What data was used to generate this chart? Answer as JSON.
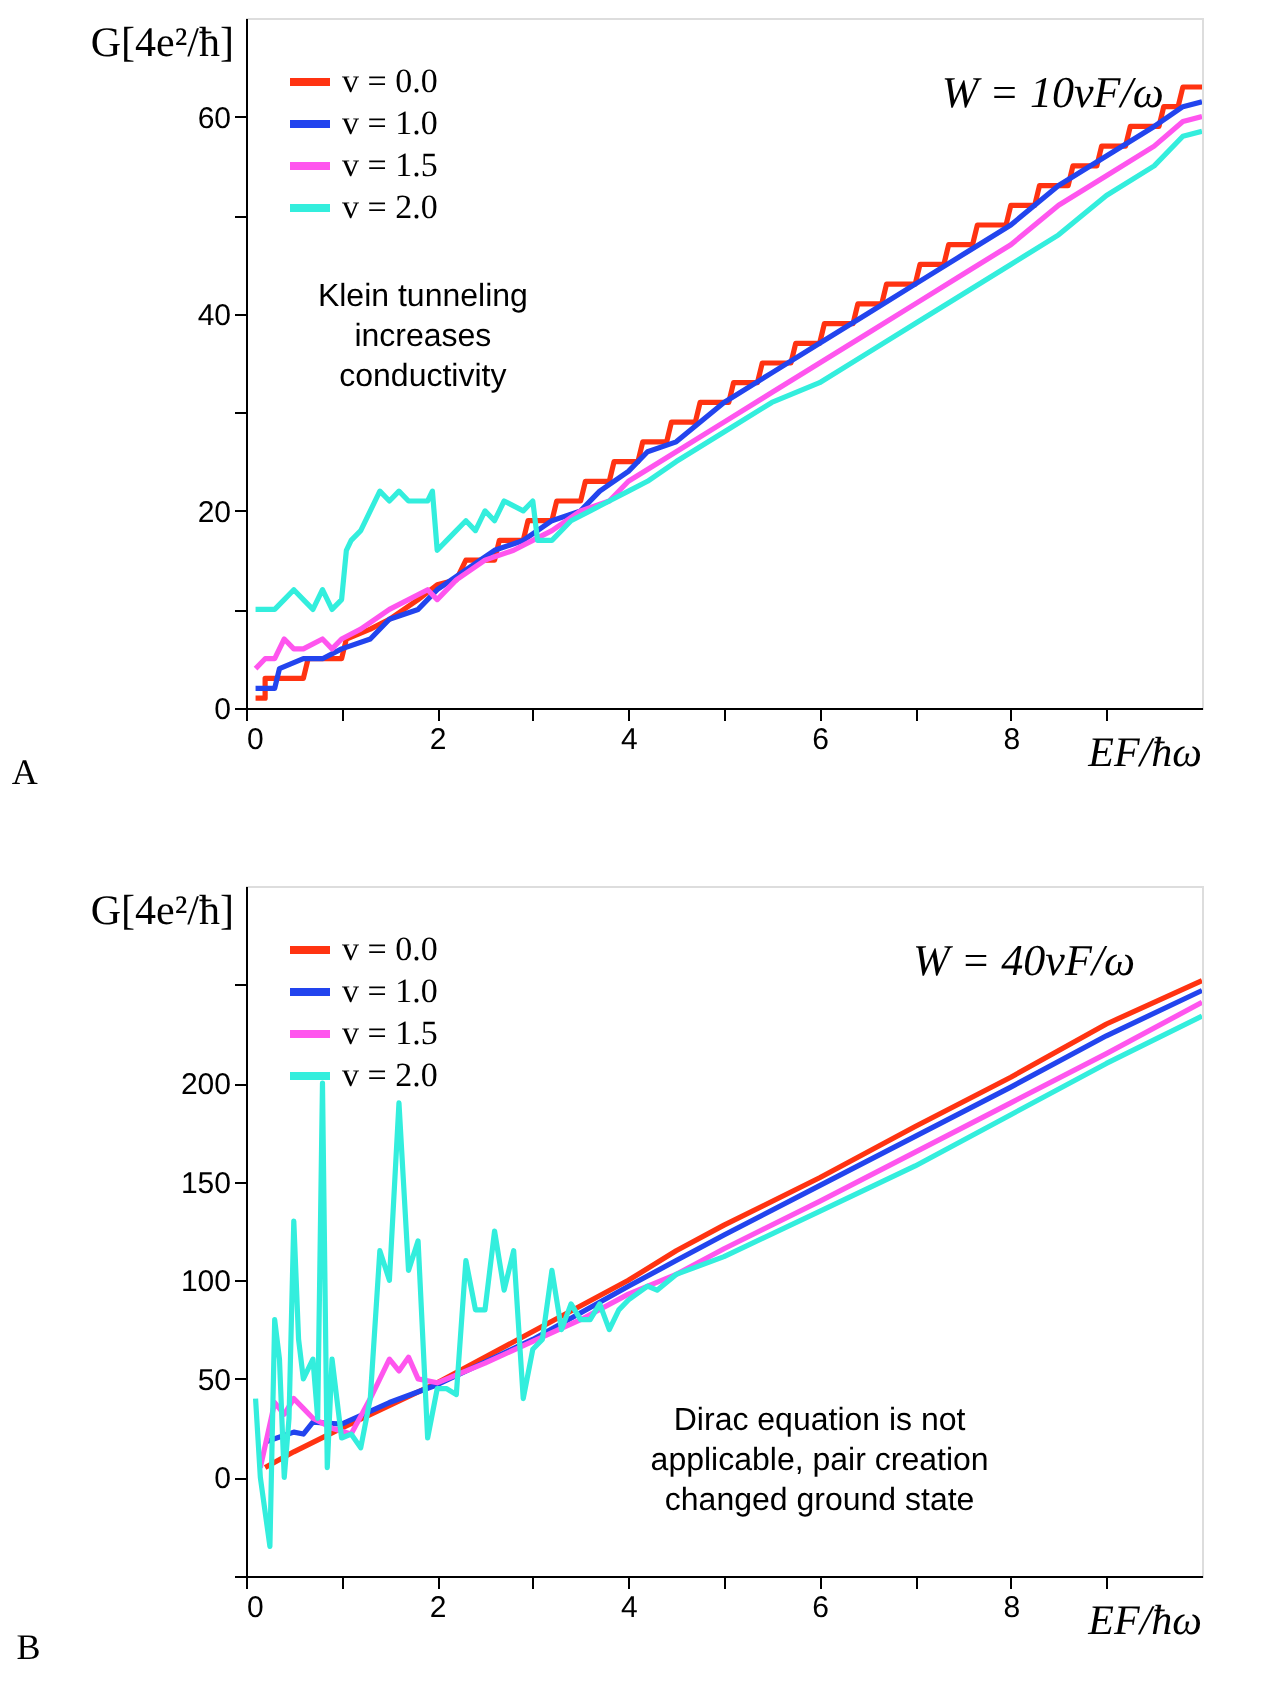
{
  "chart_data": [
    {
      "type": "line",
      "xlabel": "EF/ħω",
      "ylabel": "G[4e²/ħ]",
      "legend": "top left",
      "grid": false,
      "line_style": "solid",
      "marker": "none",
      "xlim": [
        0,
        10
      ],
      "ylim": [
        0,
        70
      ],
      "xticks": [
        0,
        {
          "value": 1,
          "label": null
        },
        2,
        {
          "value": 3,
          "label": null
        },
        4,
        {
          "value": 5,
          "label": null
        },
        6,
        {
          "value": 7,
          "label": null
        },
        8,
        {
          "value": 9,
          "label": null
        }
      ],
      "yticks": [
        0,
        {
          "value": 10,
          "label": null
        },
        20,
        {
          "value": 30,
          "label": null
        },
        40,
        {
          "value": 50,
          "label": null
        },
        60
      ],
      "annotations": [
        "W = 10vF/ω",
        "Klein tunneling increases conductivity",
        "A"
      ],
      "series": [
        {
          "name": "v = 0.0",
          "color": "#ff3311",
          "x": [
            0.1,
            0.2,
            0.2,
            0.6,
            0.65,
            1.0,
            1.05,
            1.3,
            1.5,
            1.8,
            2.0,
            2.2,
            2.3,
            2.6,
            2.65,
            2.9,
            2.95,
            3.2,
            3.25,
            3.5,
            3.55,
            3.8,
            3.85,
            4.1,
            4.15,
            4.4,
            4.45,
            4.7,
            4.75,
            5.05,
            5.1,
            5.35,
            5.4,
            5.7,
            5.75,
            6.0,
            6.05,
            6.35,
            6.4,
            6.65,
            6.7,
            7.0,
            7.05,
            7.3,
            7.35,
            7.6,
            7.65,
            7.95,
            8.0,
            8.25,
            8.3,
            8.6,
            8.65,
            8.9,
            8.95,
            9.2,
            9.25,
            9.55,
            9.6,
            9.75,
            9.8,
            10
          ],
          "values": [
            1,
            1,
            3,
            3,
            5,
            5,
            7,
            8,
            9,
            11,
            12.5,
            13,
            15,
            15,
            17,
            17,
            19,
            19,
            21,
            21,
            23,
            23,
            25,
            25,
            27,
            27,
            29,
            29,
            31,
            31,
            33,
            33,
            35,
            35,
            37,
            37,
            39,
            39,
            41,
            41,
            43,
            43,
            45,
            45,
            47,
            47,
            49,
            49,
            51,
            51,
            53,
            53,
            55,
            55,
            57,
            57,
            59,
            59,
            61,
            61,
            63,
            63
          ]
        },
        {
          "name": "v = 1.0",
          "color": "#2244ee",
          "x": [
            0.1,
            0.3,
            0.35,
            0.6,
            0.8,
            1.0,
            1.3,
            1.5,
            1.8,
            2.0,
            2.3,
            2.6,
            2.9,
            3.2,
            3.5,
            3.7,
            4.0,
            4.2,
            4.5,
            5.0,
            5.5,
            6.0,
            6.5,
            7.0,
            7.5,
            8.0,
            8.5,
            9.0,
            9.5,
            9.8,
            10
          ],
          "values": [
            2,
            2,
            4,
            5,
            5,
            6,
            7,
            9,
            10,
            12,
            14,
            16,
            17,
            19,
            20,
            22,
            24,
            26,
            27,
            31,
            34,
            37,
            40,
            43,
            46,
            49,
            53,
            56,
            59,
            61,
            61.5
          ]
        },
        {
          "name": "v = 1.5",
          "color": "#ff55ee",
          "x": [
            0.1,
            0.2,
            0.3,
            0.4,
            0.5,
            0.6,
            0.8,
            0.9,
            1.0,
            1.2,
            1.5,
            1.7,
            1.9,
            2.0,
            2.2,
            2.5,
            2.8,
            3.0,
            3.2,
            3.5,
            3.8,
            4.0,
            4.5,
            5.0,
            5.5,
            6.0,
            6.5,
            7.0,
            7.5,
            8.0,
            8.5,
            9.0,
            9.5,
            9.8,
            10
          ],
          "values": [
            4,
            5,
            5,
            7,
            6,
            6,
            7,
            6,
            7,
            8,
            10,
            11,
            12,
            11,
            13,
            15,
            16,
            17,
            18,
            20,
            21,
            23,
            26,
            29,
            32,
            35,
            38,
            41,
            44,
            47,
            51,
            54,
            57,
            59.5,
            60
          ]
        },
        {
          "name": "v = 2.0",
          "color": "#33eedd",
          "x": [
            0.1,
            0.3,
            0.4,
            0.5,
            0.6,
            0.7,
            0.8,
            0.9,
            1.0,
            1.05,
            1.1,
            1.2,
            1.3,
            1.4,
            1.5,
            1.6,
            1.7,
            1.9,
            1.95,
            2.0,
            2.1,
            2.3,
            2.4,
            2.5,
            2.6,
            2.7,
            2.9,
            3.0,
            3.05,
            3.2,
            3.4,
            3.6,
            3.8,
            4.0,
            4.2,
            4.5,
            5.0,
            5.5,
            6.0,
            6.5,
            7.0,
            7.5,
            8.0,
            8.5,
            9.0,
            9.5,
            9.8,
            10
          ],
          "values": [
            10,
            10,
            11,
            12,
            11,
            10,
            12,
            10,
            11,
            16,
            17,
            18,
            20,
            22,
            21,
            22,
            21,
            21,
            22,
            16,
            17,
            19,
            18,
            20,
            19,
            21,
            20,
            21,
            17,
            17,
            19,
            20,
            21,
            22,
            23,
            25,
            28,
            31,
            33,
            36,
            39,
            42,
            45,
            48,
            52,
            55,
            58,
            58.5
          ]
        }
      ]
    },
    {
      "type": "line",
      "xlabel": "EF/ħω",
      "ylabel": "G[4e²/ħ]",
      "legend": "top left",
      "grid": false,
      "line_style": "solid",
      "marker": "none",
      "xlim": [
        0,
        10
      ],
      "ylim": [
        -50,
        300
      ],
      "xticks": [
        0,
        {
          "value": 1,
          "label": null
        },
        2,
        {
          "value": 3,
          "label": null
        },
        4,
        {
          "value": 5,
          "label": null
        },
        6,
        {
          "value": 7,
          "label": null
        },
        8,
        {
          "value": 9,
          "label": null
        }
      ],
      "yticks": [
        {
          "value": -50,
          "label": null
        },
        0,
        50,
        100,
        150,
        200,
        {
          "value": 250,
          "label": null
        }
      ],
      "annotations": [
        "W = 40vF/ω",
        "Dirac equation is not applicable, pair creation changed ground state",
        "B"
      ],
      "series": [
        {
          "name": "v = 0.0",
          "color": "#ff3311",
          "x": [
            0.2,
            0.5,
            1,
            2,
            3,
            4,
            4.5,
            5,
            6,
            7,
            8,
            9,
            10
          ],
          "values": [
            5,
            13,
            25,
            48,
            74,
            100,
            115,
            128,
            152,
            178,
            203,
            230,
            252
          ]
        },
        {
          "name": "v = 1.0",
          "color": "#2244ee",
          "x": [
            0.2,
            0.5,
            0.6,
            0.7,
            1,
            1.5,
            2,
            3,
            4,
            4.5,
            5,
            6,
            7,
            8,
            9,
            10
          ],
          "values": [
            18,
            23,
            22,
            28,
            27,
            38,
            47,
            70,
            97,
            110,
            123,
            148,
            173,
            198,
            224,
            247
          ]
        },
        {
          "name": "v = 1.5",
          "color": "#ff55ee",
          "x": [
            0.15,
            0.3,
            0.4,
            0.5,
            0.6,
            0.7,
            0.9,
            1.1,
            1.3,
            1.5,
            1.6,
            1.7,
            1.8,
            2.0,
            2.5,
            3,
            3.5,
            4,
            4.5,
            5,
            6,
            7,
            8,
            9,
            10
          ],
          "values": [
            5,
            38,
            32,
            40,
            35,
            30,
            25,
            22,
            40,
            60,
            54,
            61,
            50,
            48,
            58,
            69,
            80,
            93,
            103,
            116,
            140,
            165,
            190,
            215,
            241
          ]
        },
        {
          "name": "v = 2.0",
          "color": "#33eedd",
          "x": [
            0.1,
            0.15,
            0.25,
            0.3,
            0.35,
            0.4,
            0.45,
            0.5,
            0.55,
            0.6,
            0.7,
            0.75,
            0.8,
            0.85,
            0.9,
            1.0,
            1.1,
            1.2,
            1.3,
            1.4,
            1.5,
            1.6,
            1.7,
            1.8,
            1.9,
            2.0,
            2.1,
            2.2,
            2.3,
            2.4,
            2.5,
            2.6,
            2.7,
            2.8,
            2.9,
            3.0,
            3.1,
            3.2,
            3.3,
            3.4,
            3.5,
            3.6,
            3.7,
            3.8,
            3.9,
            4.0,
            4.2,
            4.3,
            4.5,
            5,
            6,
            7,
            8,
            9,
            10
          ],
          "values": [
            40,
            0,
            -35,
            80,
            60,
            0,
            30,
            130,
            70,
            50,
            60,
            30,
            200,
            5,
            60,
            20,
            22,
            15,
            40,
            115,
            100,
            190,
            105,
            120,
            20,
            45,
            45,
            42,
            110,
            85,
            85,
            125,
            95,
            115,
            40,
            65,
            70,
            105,
            75,
            88,
            80,
            80,
            88,
            75,
            85,
            90,
            97,
            95,
            103,
            112,
            135,
            158,
            184,
            210,
            234
          ]
        }
      ]
    }
  ]
}
